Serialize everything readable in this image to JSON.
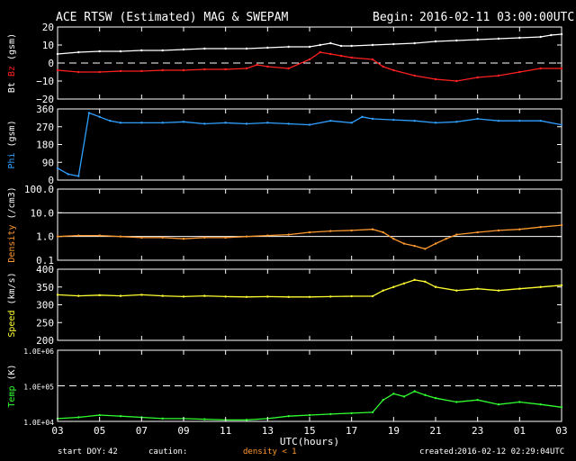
{
  "header": {
    "title": "ACE RTSW (Estimated) MAG & SWEPAM",
    "begin_label": "Begin:",
    "begin_time": "2016-02-11 03:00:00UTC"
  },
  "footer": {
    "start_doy_label": "start DOY:",
    "start_doy": "42",
    "caution_label": "caution:",
    "density_note": "density < 1",
    "created_label": "created:",
    "created_time": "2016-02-12 02:29:04UTC"
  },
  "colors": {
    "background": "#000000",
    "axes": "#ffffff",
    "bt": "#ffffff",
    "bz": "#ff2020",
    "phi": "#30a0ff",
    "density": "#ff9a30",
    "speed": "#ffff30",
    "temp": "#30ff30",
    "caution": "#ff9a30"
  },
  "chart_data": {
    "type": "line",
    "xlabel": "UTC(hours)",
    "x_ticks": [
      "03",
      "05",
      "07",
      "09",
      "11",
      "13",
      "15",
      "17",
      "19",
      "21",
      "23",
      "01",
      "03"
    ],
    "xlim_hours": [
      0,
      24
    ],
    "panels": [
      {
        "id": "mag",
        "ylabel_parts": [
          {
            "text": "Bt",
            "color": "#ffffff"
          },
          {
            "text": " ",
            "color": "#ffffff"
          },
          {
            "text": "Bz",
            "color": "#ff2020"
          },
          {
            "text": " (gsm)",
            "color": "#ffffff"
          }
        ],
        "scale": "linear",
        "ylim": [
          -20,
          20
        ],
        "y_ticks": [
          -20,
          -10,
          0,
          10,
          20
        ],
        "y_tick_labels": [
          "−20",
          "−10",
          "0",
          "10",
          "20"
        ],
        "ref_lines": [
          {
            "value": 0,
            "style": "dashed"
          }
        ],
        "series": [
          {
            "color": "#ffffff",
            "x": [
              0,
              1,
              2,
              3,
              4,
              5,
              6,
              7,
              8,
              9,
              10,
              11,
              12,
              12.5,
              13,
              13.5,
              14,
              15,
              16,
              17,
              18,
              19,
              20,
              21,
              22,
              23,
              23.5,
              24
            ],
            "y": [
              5,
              6,
              6.5,
              6.5,
              7,
              7,
              7.5,
              8,
              8,
              8,
              8.5,
              9,
              9,
              10,
              11,
              9.5,
              9.5,
              10,
              10.5,
              11,
              12,
              12.5,
              13,
              13.5,
              14,
              14.5,
              15.5,
              16
            ]
          },
          {
            "color": "#ff2020",
            "x": [
              0,
              1,
              2,
              3,
              4,
              5,
              6,
              7,
              8,
              9,
              9.5,
              10,
              11,
              12,
              12.5,
              13,
              13.5,
              14,
              15,
              15.5,
              16,
              17,
              18,
              19,
              20,
              21,
              22,
              23,
              24
            ],
            "y": [
              -4,
              -5,
              -5,
              -4.5,
              -4.5,
              -4,
              -4,
              -3.5,
              -3.5,
              -3,
              -1,
              -2,
              -3,
              2,
              6,
              5,
              4,
              3,
              2,
              -2,
              -4,
              -7,
              -9,
              -10,
              -8,
              -7,
              -5,
              -3,
              -3
            ]
          }
        ]
      },
      {
        "id": "phi",
        "ylabel_parts": [
          {
            "text": "Phi",
            "color": "#30a0ff"
          },
          {
            "text": " (gsm)",
            "color": "#ffffff"
          }
        ],
        "scale": "linear",
        "ylim": [
          0,
          360
        ],
        "y_ticks": [
          0,
          90,
          180,
          270,
          360
        ],
        "y_tick_labels": [
          "0",
          "90",
          "180",
          "270",
          "360"
        ],
        "ref_lines": [],
        "series": [
          {
            "color": "#30a0ff",
            "x": [
              0,
              0.5,
              1,
              1.5,
              2,
              2.5,
              3,
              4,
              5,
              6,
              7,
              8,
              9,
              10,
              11,
              12,
              13,
              14,
              14.5,
              15,
              16,
              17,
              18,
              19,
              20,
              21,
              22,
              23,
              24
            ],
            "y": [
              60,
              30,
              20,
              340,
              320,
              300,
              290,
              290,
              290,
              295,
              285,
              290,
              285,
              290,
              285,
              280,
              300,
              290,
              320,
              310,
              305,
              300,
              290,
              295,
              310,
              300,
              300,
              300,
              280
            ]
          }
        ]
      },
      {
        "id": "density",
        "ylabel_parts": [
          {
            "text": "Density",
            "color": "#ff9a30"
          },
          {
            "text": " (/cm3)",
            "color": "#ffffff"
          }
        ],
        "scale": "log",
        "ylim": [
          0.1,
          100
        ],
        "y_ticks": [
          0.1,
          1,
          10,
          100
        ],
        "y_tick_labels": [
          "0.1",
          "1.0",
          "10.0",
          "100.0"
        ],
        "ref_lines": [
          {
            "value": 1,
            "style": "solid"
          },
          {
            "value": 10,
            "style": "solid"
          }
        ],
        "series": [
          {
            "color": "#ff9a30",
            "x": [
              0,
              1,
              2,
              3,
              4,
              5,
              6,
              7,
              8,
              9,
              10,
              11,
              12,
              13,
              14,
              15,
              15.5,
              16,
              16.5,
              17,
              17.5,
              18,
              18.5,
              19,
              20,
              21,
              22,
              23,
              24
            ],
            "y": [
              1.0,
              1.1,
              1.1,
              1.0,
              0.9,
              0.9,
              0.8,
              0.9,
              0.9,
              1.0,
              1.1,
              1.2,
              1.5,
              1.7,
              1.8,
              2.0,
              1.5,
              0.8,
              0.5,
              0.4,
              0.3,
              0.5,
              0.8,
              1.2,
              1.5,
              1.8,
              2.0,
              2.5,
              3.0
            ]
          }
        ]
      },
      {
        "id": "speed",
        "ylabel_parts": [
          {
            "text": "Speed",
            "color": "#ffff30"
          },
          {
            "text": " (km/s)",
            "color": "#ffffff"
          }
        ],
        "scale": "linear",
        "ylim": [
          200,
          400
        ],
        "y_ticks": [
          200,
          250,
          300,
          350,
          400
        ],
        "y_tick_labels": [
          "200",
          "250",
          "300",
          "350",
          "400"
        ],
        "ref_lines": [],
        "series": [
          {
            "color": "#ffff30",
            "x": [
              0,
              1,
              2,
              3,
              4,
              5,
              6,
              7,
              8,
              9,
              10,
              11,
              12,
              13,
              14,
              15,
              15.5,
              16,
              16.5,
              17,
              17.5,
              18,
              19,
              20,
              21,
              22,
              23,
              24
            ],
            "y": [
              328,
              325,
              327,
              325,
              328,
              325,
              323,
              325,
              323,
              322,
              323,
              322,
              322,
              323,
              324,
              324,
              340,
              350,
              360,
              370,
              365,
              350,
              340,
              345,
              340,
              345,
              350,
              355
            ]
          }
        ]
      },
      {
        "id": "temp",
        "ylabel_parts": [
          {
            "text": "Temp",
            "color": "#30ff30"
          },
          {
            "text": " (K)",
            "color": "#ffffff"
          }
        ],
        "scale": "log",
        "ylim": [
          10000,
          1000000
        ],
        "y_ticks": [
          10000,
          100000,
          1000000
        ],
        "y_tick_labels": [
          "1.0E+04",
          "1.0E+05",
          "1.0E+06"
        ],
        "ref_lines": [
          {
            "value": 100000,
            "style": "dashed"
          }
        ],
        "series": [
          {
            "color": "#30ff30",
            "x": [
              0,
              1,
              2,
              3,
              4,
              5,
              6,
              7,
              8,
              9,
              10,
              11,
              12,
              13,
              14,
              15,
              15.5,
              16,
              16.5,
              17,
              17.5,
              18,
              19,
              20,
              21,
              22,
              23,
              24
            ],
            "y": [
              12000,
              13000,
              15000,
              14000,
              13000,
              12000,
              12000,
              11500,
              11000,
              11000,
              12000,
              14000,
              15000,
              16000,
              17000,
              18000,
              40000,
              60000,
              50000,
              70000,
              55000,
              45000,
              35000,
              40000,
              30000,
              35000,
              30000,
              25000
            ]
          }
        ]
      }
    ]
  }
}
